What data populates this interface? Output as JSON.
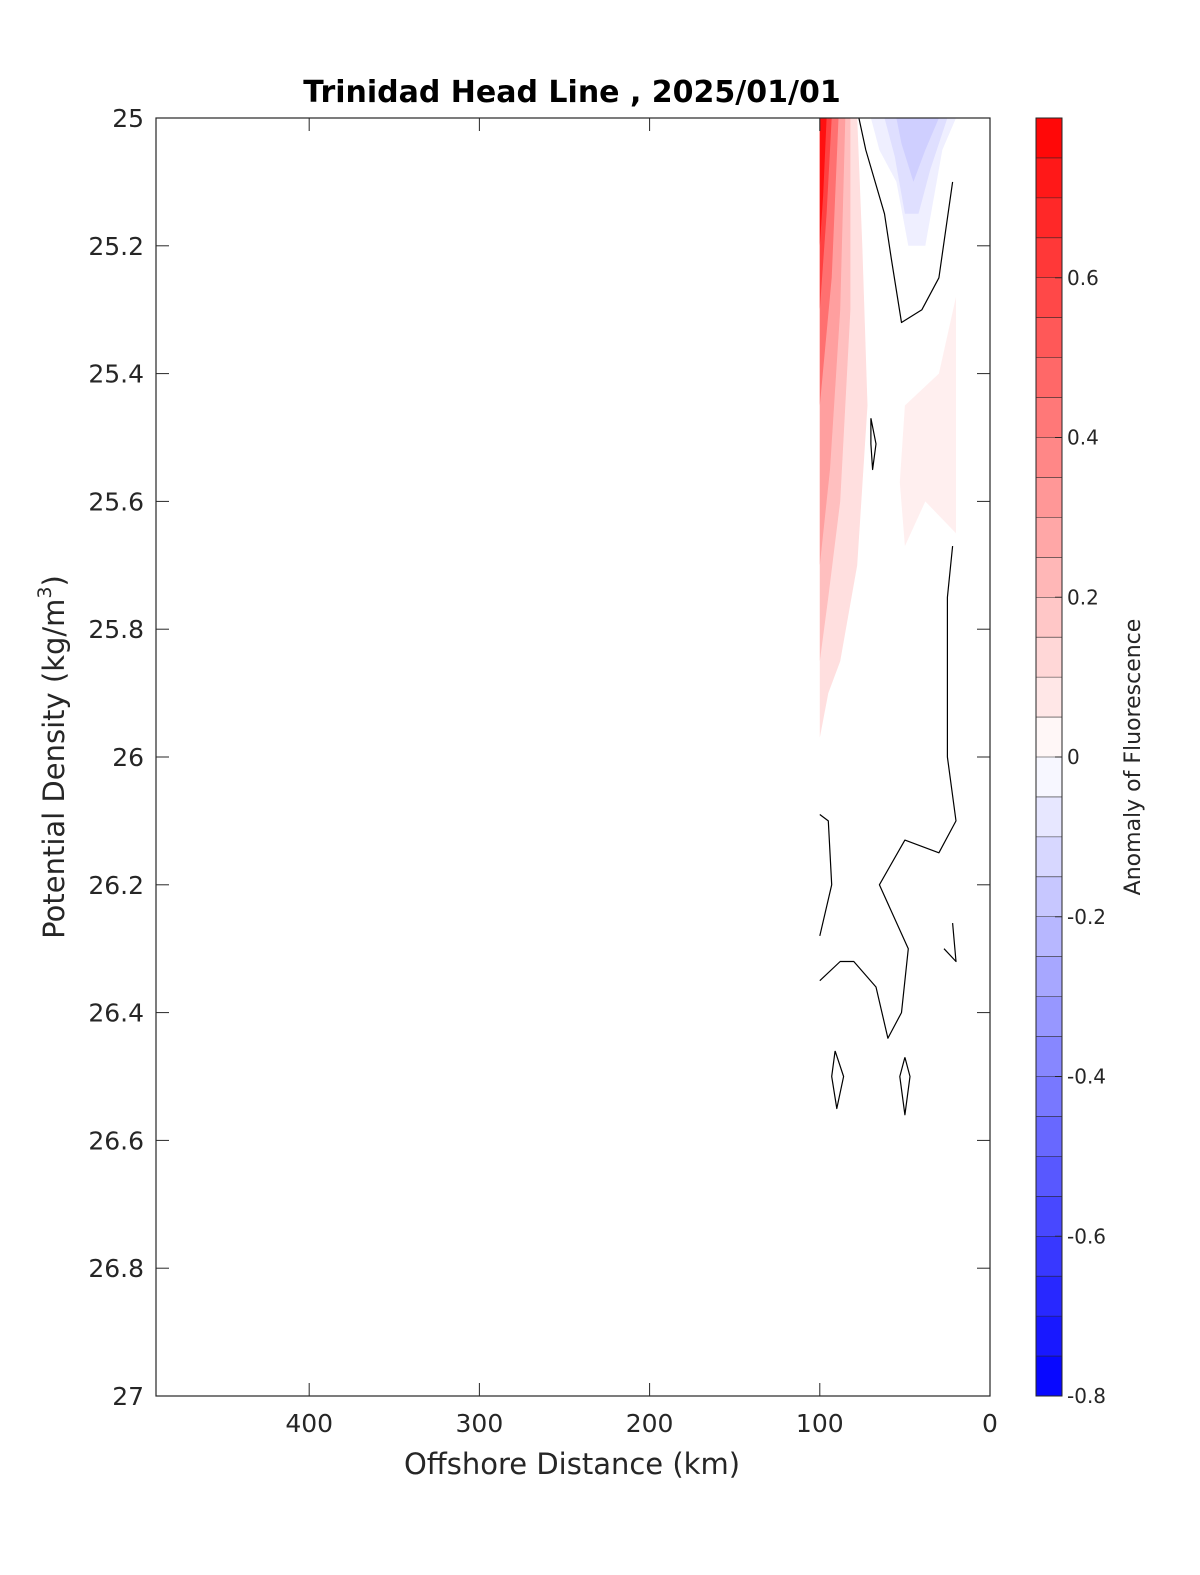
{
  "chart_data": {
    "type": "heatmap",
    "title": "Trinidad Head Line , 2025/01/01",
    "xlabel": "Offshore Distance (km)",
    "ylabel_main": "Potential Density (kg/m",
    "ylabel_sup": "3",
    "ylabel_close": ")",
    "xlim": [
      490,
      0
    ],
    "x_reversed": true,
    "ylim": [
      25,
      27
    ],
    "y_reversed": true,
    "x_ticks": [
      400,
      300,
      200,
      100,
      0
    ],
    "y_ticks": [
      25,
      25.2,
      25.4,
      25.6,
      25.8,
      26,
      26.2,
      26.4,
      26.6,
      26.8,
      27
    ],
    "y_tick_labels": [
      "25",
      "25.2",
      "25.4",
      "25.6",
      "25.8",
      "26",
      "26.2",
      "26.4",
      "26.6",
      "26.8",
      "27"
    ],
    "colorbar": {
      "label": "Anomaly of Fluorescence",
      "range": [
        -0.8,
        0.8
      ],
      "step": 0.05,
      "ticks": [
        0.6,
        0.4,
        0.2,
        0,
        -0.2,
        -0.4,
        -0.6,
        -0.8
      ],
      "tick_labels": [
        "0.6",
        "0.4",
        "0.2",
        "0",
        "-0.2",
        "-0.4",
        "-0.6",
        "-0.8"
      ],
      "colormap": "blue-white-red",
      "low_color": "#0000ff",
      "mid_color": "#ffffff",
      "high_color": "#ff0000"
    },
    "filled_regions": [
      {
        "level": 0.1,
        "points": [
          [
            100,
            25.0
          ],
          [
            78,
            25.0
          ],
          [
            75,
            25.2
          ],
          [
            72,
            25.45
          ],
          [
            78,
            25.7
          ],
          [
            88,
            25.85
          ],
          [
            95,
            25.9
          ],
          [
            100,
            25.97
          ]
        ]
      },
      {
        "level": 0.2,
        "points": [
          [
            100,
            25.0
          ],
          [
            82,
            25.0
          ],
          [
            82,
            25.3
          ],
          [
            88,
            25.6
          ],
          [
            95,
            25.75
          ],
          [
            100,
            25.85
          ]
        ]
      },
      {
        "level": 0.3,
        "points": [
          [
            100,
            25.0
          ],
          [
            85,
            25.0
          ],
          [
            88,
            25.3
          ],
          [
            94,
            25.55
          ],
          [
            100,
            25.7
          ]
        ]
      },
      {
        "level": 0.45,
        "points": [
          [
            100,
            25.0
          ],
          [
            89,
            25.0
          ],
          [
            93,
            25.25
          ],
          [
            100,
            25.45
          ]
        ]
      },
      {
        "level": 0.6,
        "points": [
          [
            100,
            25.0
          ],
          [
            93,
            25.0
          ],
          [
            96,
            25.15
          ],
          [
            100,
            25.3
          ]
        ]
      },
      {
        "level": 0.75,
        "points": [
          [
            100,
            25.0
          ],
          [
            96,
            25.0
          ],
          [
            98,
            25.12
          ],
          [
            100,
            25.2
          ]
        ]
      },
      {
        "level": 0.05,
        "points": [
          [
            20,
            25.28
          ],
          [
            20,
            25.65
          ],
          [
            38,
            25.6
          ],
          [
            50,
            25.67
          ],
          [
            53,
            25.57
          ],
          [
            50,
            25.45
          ],
          [
            30,
            25.4
          ]
        ]
      },
      {
        "level": -0.05,
        "points": [
          [
            70,
            25.0
          ],
          [
            20,
            25.0
          ],
          [
            28,
            25.05
          ],
          [
            38,
            25.2
          ],
          [
            48,
            25.2
          ],
          [
            55,
            25.1
          ],
          [
            65,
            25.05
          ]
        ]
      },
      {
        "level": -0.1,
        "points": [
          [
            62,
            25.0
          ],
          [
            25,
            25.0
          ],
          [
            35,
            25.08
          ],
          [
            42,
            25.15
          ],
          [
            50,
            25.15
          ],
          [
            56,
            25.06
          ]
        ]
      },
      {
        "level": -0.15,
        "points": [
          [
            55,
            25.0
          ],
          [
            30,
            25.0
          ],
          [
            38,
            25.05
          ],
          [
            45,
            25.1
          ],
          [
            52,
            25.04
          ]
        ]
      }
    ],
    "zero_contours": [
      [
        [
          77,
          25.0
        ],
        [
          73,
          25.05
        ],
        [
          62,
          25.15
        ],
        [
          58,
          25.22
        ],
        [
          52,
          25.32
        ],
        [
          40,
          25.3
        ],
        [
          30,
          25.25
        ],
        [
          22,
          25.1
        ]
      ],
      [
        [
          70,
          25.47
        ],
        [
          67,
          25.51
        ],
        [
          69,
          25.55
        ],
        [
          70,
          25.51
        ],
        [
          70,
          25.47
        ]
      ],
      [
        [
          22,
          25.67
        ],
        [
          25,
          25.75
        ],
        [
          25,
          26.0
        ],
        [
          20,
          26.1
        ],
        [
          30,
          26.15
        ],
        [
          50,
          26.13
        ],
        [
          65,
          26.2
        ],
        [
          48,
          26.3
        ],
        [
          52,
          26.4
        ],
        [
          60,
          26.44
        ],
        [
          67,
          26.36
        ],
        [
          80,
          26.32
        ],
        [
          88,
          26.32
        ],
        [
          100,
          26.35
        ]
      ],
      [
        [
          100,
          26.09
        ],
        [
          95,
          26.1
        ],
        [
          93,
          26.2
        ],
        [
          100,
          26.28
        ]
      ],
      [
        [
          27,
          26.3
        ],
        [
          20,
          26.32
        ],
        [
          22,
          26.26
        ]
      ],
      [
        [
          91,
          26.46
        ],
        [
          86,
          26.5
        ],
        [
          90,
          26.55
        ],
        [
          93,
          26.5
        ],
        [
          91,
          26.46
        ]
      ],
      [
        [
          50,
          26.47
        ],
        [
          47,
          26.5
        ],
        [
          50,
          26.56
        ],
        [
          53,
          26.5
        ],
        [
          50,
          26.47
        ]
      ]
    ]
  }
}
